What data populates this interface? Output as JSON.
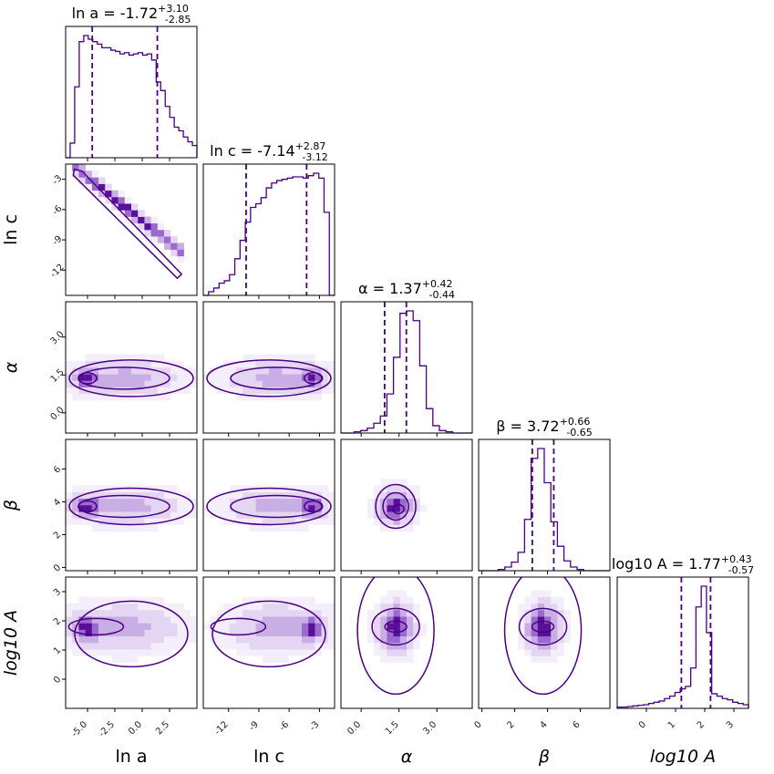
{
  "figure": {
    "color": "#4b0082",
    "fill_colors": [
      "#f4eefb",
      "#e4d6f2",
      "#c9aee6",
      "#9a6bcd",
      "#5a0f9a"
    ]
  },
  "chart_data": {
    "type": "corner",
    "parameters": [
      {
        "key": "lna",
        "label": "ln a",
        "range": [
          -7.0,
          5.0
        ],
        "ticks": [
          -5.0,
          -2.5,
          0.0,
          2.5
        ],
        "tick_labels": [
          "-5.0",
          "-2.5",
          "0.0",
          "2.5"
        ],
        "median": -1.72,
        "plus": 3.1,
        "minus": 2.85,
        "title_prefix": "ln a = ",
        "title_value": "-1.72",
        "title_plus": "+3.10",
        "title_minus": "-2.85"
      },
      {
        "key": "lnc",
        "label": "ln c",
        "range": [
          -14.5,
          -1.5
        ],
        "ticks": [
          -12,
          -9,
          -6,
          -3
        ],
        "tick_labels": [
          "-12",
          "-9",
          "-6",
          "-3"
        ],
        "median": -7.14,
        "plus": 2.87,
        "minus": 3.12,
        "title_prefix": "ln c = ",
        "title_value": "-7.14",
        "title_plus": "+2.87",
        "title_minus": "-3.12"
      },
      {
        "key": "alpha",
        "label": "α",
        "range": [
          -0.8,
          4.4
        ],
        "ticks": [
          0.0,
          1.5,
          3.0
        ],
        "tick_labels": [
          "0.0",
          "1.5",
          "3.0"
        ],
        "median": 1.37,
        "plus": 0.42,
        "minus": 0.44,
        "title_prefix": "α = ",
        "title_value": "1.37",
        "title_plus": "+0.42",
        "title_minus": "-0.44"
      },
      {
        "key": "beta",
        "label": "β",
        "range": [
          -0.2,
          7.8
        ],
        "ticks": [
          0,
          2,
          4,
          6
        ],
        "tick_labels": [
          "0",
          "2",
          "4",
          "6"
        ],
        "median": 3.72,
        "plus": 0.66,
        "minus": 0.65,
        "title_prefix": "β = ",
        "title_value": "3.72",
        "title_plus": "+0.66",
        "title_minus": "-0.65"
      },
      {
        "key": "log10A",
        "label": "log10 A",
        "range": [
          -1.0,
          3.5
        ],
        "ticks": [
          0,
          1,
          2,
          3
        ],
        "tick_labels": [
          "0",
          "1",
          "2",
          "3"
        ],
        "median": 1.77,
        "plus": 0.43,
        "minus": 0.57,
        "title_prefix": "log10 A = ",
        "title_value": "1.77",
        "title_plus": "+0.43",
        "title_minus": "-0.57"
      }
    ],
    "histograms": {
      "lna": [
        0.0,
        0.12,
        0.58,
        0.95,
        1.0,
        0.97,
        0.95,
        0.93,
        0.9,
        0.9,
        0.88,
        0.87,
        0.85,
        0.86,
        0.84,
        0.85,
        0.86,
        0.84,
        0.85,
        0.8,
        0.62,
        0.55,
        0.42,
        0.33,
        0.25,
        0.22,
        0.17,
        0.13,
        0.1
      ],
      "lnc": [
        0.0,
        0.03,
        0.06,
        0.1,
        0.12,
        0.17,
        0.3,
        0.45,
        0.6,
        0.72,
        0.75,
        0.8,
        0.88,
        0.92,
        0.94,
        0.95,
        0.96,
        0.97,
        0.97,
        0.96,
        0.98,
        1.0,
        0.96,
        0.68,
        0.0
      ],
      "alpha": [
        0.0,
        0.0,
        0.01,
        0.02,
        0.04,
        0.08,
        0.14,
        0.32,
        0.62,
        0.98,
        1.0,
        0.92,
        0.55,
        0.2,
        0.06,
        0.02,
        0.01,
        0.0,
        0.0,
        0.0
      ],
      "beta": [
        0.0,
        0.0,
        0.0,
        0.01,
        0.03,
        0.07,
        0.15,
        0.42,
        0.92,
        1.0,
        0.72,
        0.4,
        0.2,
        0.08,
        0.03,
        0.01,
        0.0,
        0.0,
        0.0,
        0.0
      ],
      "log10A": [
        0.01,
        0.01,
        0.015,
        0.02,
        0.025,
        0.03,
        0.04,
        0.05,
        0.06,
        0.08,
        0.1,
        0.13,
        0.16,
        0.18,
        0.33,
        0.83,
        1.0,
        0.62,
        0.12,
        0.1,
        0.08,
        0.07,
        0.05,
        0.04,
        0.03
      ]
    }
  }
}
